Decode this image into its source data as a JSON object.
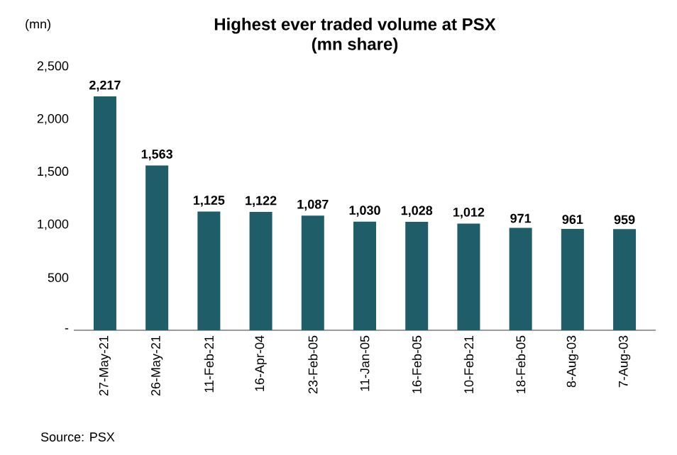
{
  "chart_data": {
    "type": "bar",
    "title": "Highest ever traded volume at PSX",
    "subtitle": "(mn share)",
    "ylabel": "(mn)",
    "categories": [
      "27-May-21",
      "26-May-21",
      "11-Feb-21",
      "16-Apr-04",
      "23-Feb-05",
      "11-Jan-05",
      "16-Feb-05",
      "10-Feb-21",
      "18-Feb-05",
      "8-Aug-03",
      "7-Aug-03"
    ],
    "values": [
      2217,
      1563,
      1125,
      1122,
      1087,
      1030,
      1028,
      1012,
      971,
      961,
      959
    ],
    "value_labels": [
      "2,217",
      "1,563",
      "1,125",
      "1,122",
      "1,087",
      "1,030",
      "1,028",
      "1,012",
      "971",
      "961",
      "959"
    ],
    "color": "#1f5d68",
    "ylim": [
      0,
      2500
    ],
    "yticks": [
      {
        "value": 0,
        "label": "-"
      },
      500,
      {
        "value": 1000,
        "label": "1,000"
      },
      {
        "value": 1500,
        "label": "1,500"
      },
      {
        "value": 2000,
        "label": "2,000"
      },
      {
        "value": 2500,
        "label": "2,500"
      }
    ],
    "annotations": [
      "Source: PSX"
    ]
  }
}
